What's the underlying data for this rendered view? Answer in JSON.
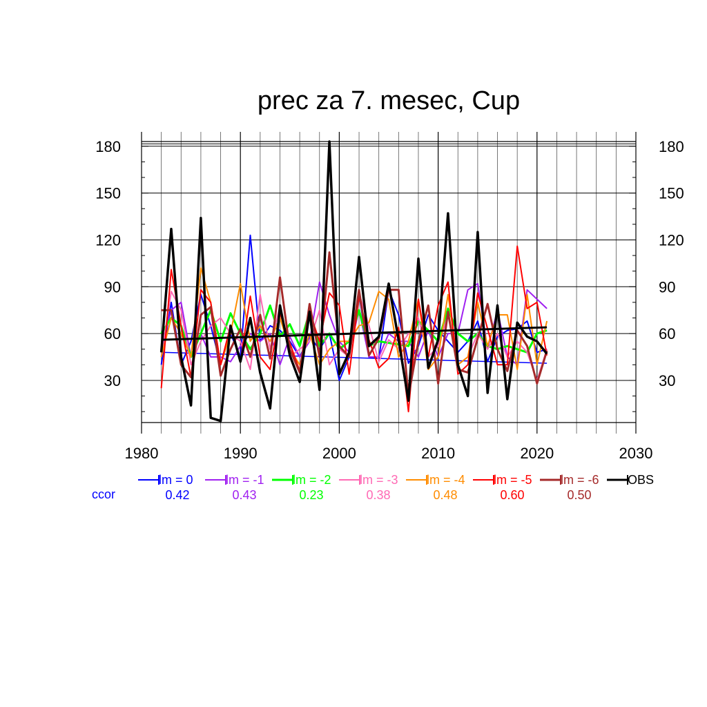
{
  "chart_data": {
    "type": "line",
    "title": "prec za 7. mesec, Cup",
    "xlim": [
      1980,
      2030
    ],
    "ylim": [
      3,
      186
    ],
    "x_ticks": [
      1980,
      1990,
      2000,
      2010,
      2020,
      2030
    ],
    "y_ticks": [
      30,
      60,
      90,
      120,
      150,
      180
    ],
    "grid": true,
    "legend_position": "below",
    "x": [
      1982,
      1983,
      1984,
      1985,
      1986,
      1987,
      1988,
      1989,
      1990,
      1991,
      1992,
      1993,
      1994,
      1995,
      1996,
      1997,
      1998,
      1999,
      2000,
      2001,
      2002,
      2003,
      2004,
      2005,
      2006,
      2007,
      2008,
      2009,
      2010,
      2011,
      2012,
      2013,
      2014,
      2015,
      2016,
      2017,
      2018,
      2019,
      2020,
      2021
    ],
    "series": [
      {
        "name": "lm = 0",
        "color": "#0000ff",
        "width": 2,
        "ccor": "0.42",
        "values": [
          40,
          80,
          40,
          55,
          85,
          65,
          40,
          60,
          45,
          123,
          55,
          65,
          62,
          55,
          45,
          58,
          50,
          60,
          30,
          45,
          85,
          45,
          44,
          88,
          72,
          41,
          52,
          72,
          62,
          55,
          48,
          55,
          68,
          42,
          58,
          62,
          63,
          68,
          48,
          50
        ],
        "trend": [
          48,
          41
        ]
      },
      {
        "name": "lm = -1",
        "color": "#a020f0",
        "width": 2,
        "ccor": "0.43",
        "values": [
          50,
          75,
          80,
          45,
          60,
          45,
          45,
          42,
          52,
          60,
          55,
          60,
          40,
          58,
          45,
          55,
          93,
          72,
          55,
          48,
          75,
          45,
          45,
          60,
          55,
          55,
          45,
          62,
          45,
          60,
          60,
          88,
          92,
          50,
          75,
          45,
          40,
          88,
          82,
          76
        ]
      },
      {
        "name": "lm = -2",
        "color": "#00ff00",
        "width": 3,
        "ccor": "0.23",
        "values": [
          60,
          70,
          65,
          45,
          60,
          75,
          55,
          73,
          60,
          50,
          60,
          78,
          58,
          66,
          52,
          74,
          52,
          60,
          50,
          55,
          75,
          52,
          55,
          54,
          53,
          52,
          68,
          62,
          55,
          76,
          60,
          55,
          60,
          52,
          50,
          52,
          50,
          48,
          60,
          62
        ]
      },
      {
        "name": "lm = -3",
        "color": "#ff69b4",
        "width": 2,
        "ccor": "0.38",
        "values": [
          45,
          87,
          75,
          40,
          55,
          65,
          70,
          60,
          55,
          37,
          85,
          50,
          78,
          45,
          50,
          55,
          75,
          40,
          50,
          45,
          86,
          65,
          42,
          56,
          50,
          60,
          70,
          45,
          52,
          72,
          40,
          45,
          60,
          50,
          60,
          45,
          55,
          48,
          30,
          50
        ]
      },
      {
        "name": "lm = -4",
        "color": "#ff8c00",
        "width": 2,
        "ccor": "0.48",
        "values": [
          45,
          70,
          60,
          45,
          102,
          80,
          40,
          60,
          92,
          55,
          65,
          55,
          70,
          50,
          40,
          60,
          40,
          50,
          55,
          55,
          65,
          67,
          87,
          82,
          45,
          55,
          82,
          37,
          45,
          85,
          40,
          45,
          80,
          52,
          72,
          72,
          37,
          85,
          40,
          68
        ]
      },
      {
        "name": "lm = -5",
        "color": "#ff0000",
        "width": 2,
        "ccor": "0.60",
        "values": [
          25,
          101,
          65,
          32,
          88,
          80,
          40,
          65,
          42,
          84,
          45,
          37,
          73,
          54,
          36,
          74,
          55,
          86,
          78,
          34,
          84,
          56,
          38,
          44,
          64,
          10,
          82,
          45,
          78,
          93,
          34,
          40,
          86,
          63,
          40,
          40,
          116,
          76,
          80,
          46
        ]
      },
      {
        "name": "lm = -6",
        "color": "#a52a2a",
        "width": 3,
        "ccor": "0.50",
        "values": [
          75,
          75,
          40,
          32,
          72,
          77,
          33,
          50,
          63,
          45,
          72,
          44,
          96,
          50,
          35,
          79,
          45,
          112,
          52,
          45,
          88,
          46,
          57,
          88,
          88,
          20,
          55,
          78,
          28,
          74,
          37,
          35,
          57,
          79,
          50,
          36,
          62,
          52,
          28,
          49
        ]
      },
      {
        "name": "OBS",
        "color": "#000000",
        "width": 3.5,
        "ccor": "",
        "values": [
          48,
          127,
          45,
          14,
          134,
          6,
          4,
          65,
          42,
          70,
          35,
          12,
          78,
          46,
          29,
          74,
          24,
          183,
          34,
          48,
          109,
          52,
          58,
          92,
          56,
          17,
          108,
          38,
          56,
          137,
          40,
          20,
          125,
          22,
          78,
          18,
          67,
          58,
          55,
          47
        ],
        "trend": [
          56,
          64
        ]
      }
    ]
  },
  "legend": {
    "ccor_label": "ccor",
    "ccor_color": "#0000ff"
  }
}
